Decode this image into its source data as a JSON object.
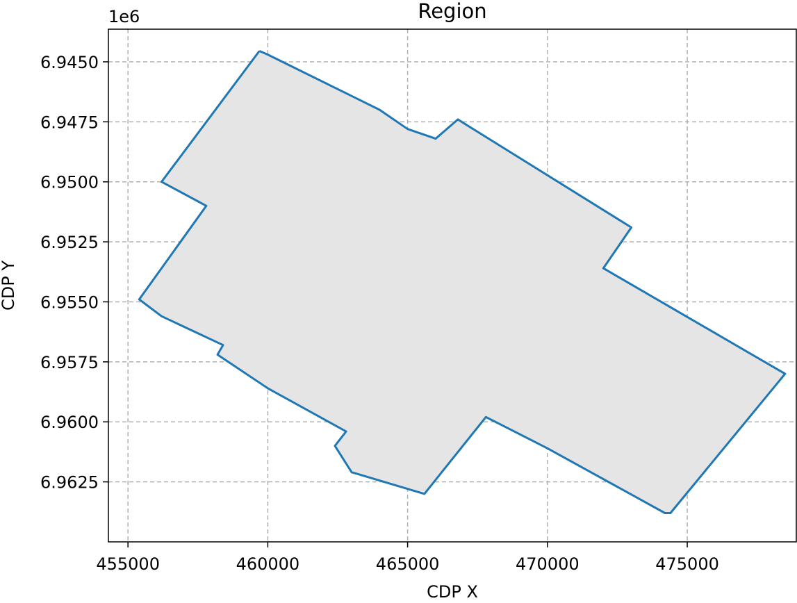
{
  "chart_data": {
    "type": "area",
    "title": "Region",
    "xlabel": "CDP X",
    "ylabel": "CDP Y",
    "y_offset_label": "1e6",
    "y_inverted": true,
    "xlim": [
      454300,
      478900
    ],
    "ylim": [
      6.94364,
      6.965
    ],
    "xticks": [
      455000,
      460000,
      465000,
      470000,
      475000
    ],
    "xtick_labels": [
      "455000",
      "460000",
      "465000",
      "470000",
      "475000"
    ],
    "yticks": [
      6.945,
      6.9475,
      6.95,
      6.9525,
      6.955,
      6.9575,
      6.96,
      6.9625
    ],
    "ytick_labels": [
      "6.9450",
      "6.9475",
      "6.9500",
      "6.9525",
      "6.9550",
      "6.9575",
      "6.9600",
      "6.9625"
    ],
    "grid": true,
    "grid_style": "dashed",
    "series": [
      {
        "line_color": "#1f77b4",
        "fill_color": "#e5e5e5",
        "x": [
          459700,
          460000,
          464000,
          465000,
          466000,
          466800,
          467000,
          473000,
          472000,
          478500,
          474400,
          474200,
          470000,
          467800,
          465600,
          463000,
          462400,
          462800,
          460000,
          458200,
          458400,
          456200,
          455400,
          457800,
          456200,
          459700
        ],
        "y": [
          6.94455,
          6.9447,
          6.947,
          6.9478,
          6.9482,
          6.9474,
          6.94755,
          6.9519,
          6.9536,
          6.958,
          6.9638,
          6.9638,
          6.9611,
          6.9598,
          6.963,
          6.9621,
          6.961,
          6.9604,
          6.9586,
          6.9572,
          6.9568,
          6.9556,
          6.9549,
          6.951,
          6.95,
          6.94455
        ]
      }
    ]
  }
}
